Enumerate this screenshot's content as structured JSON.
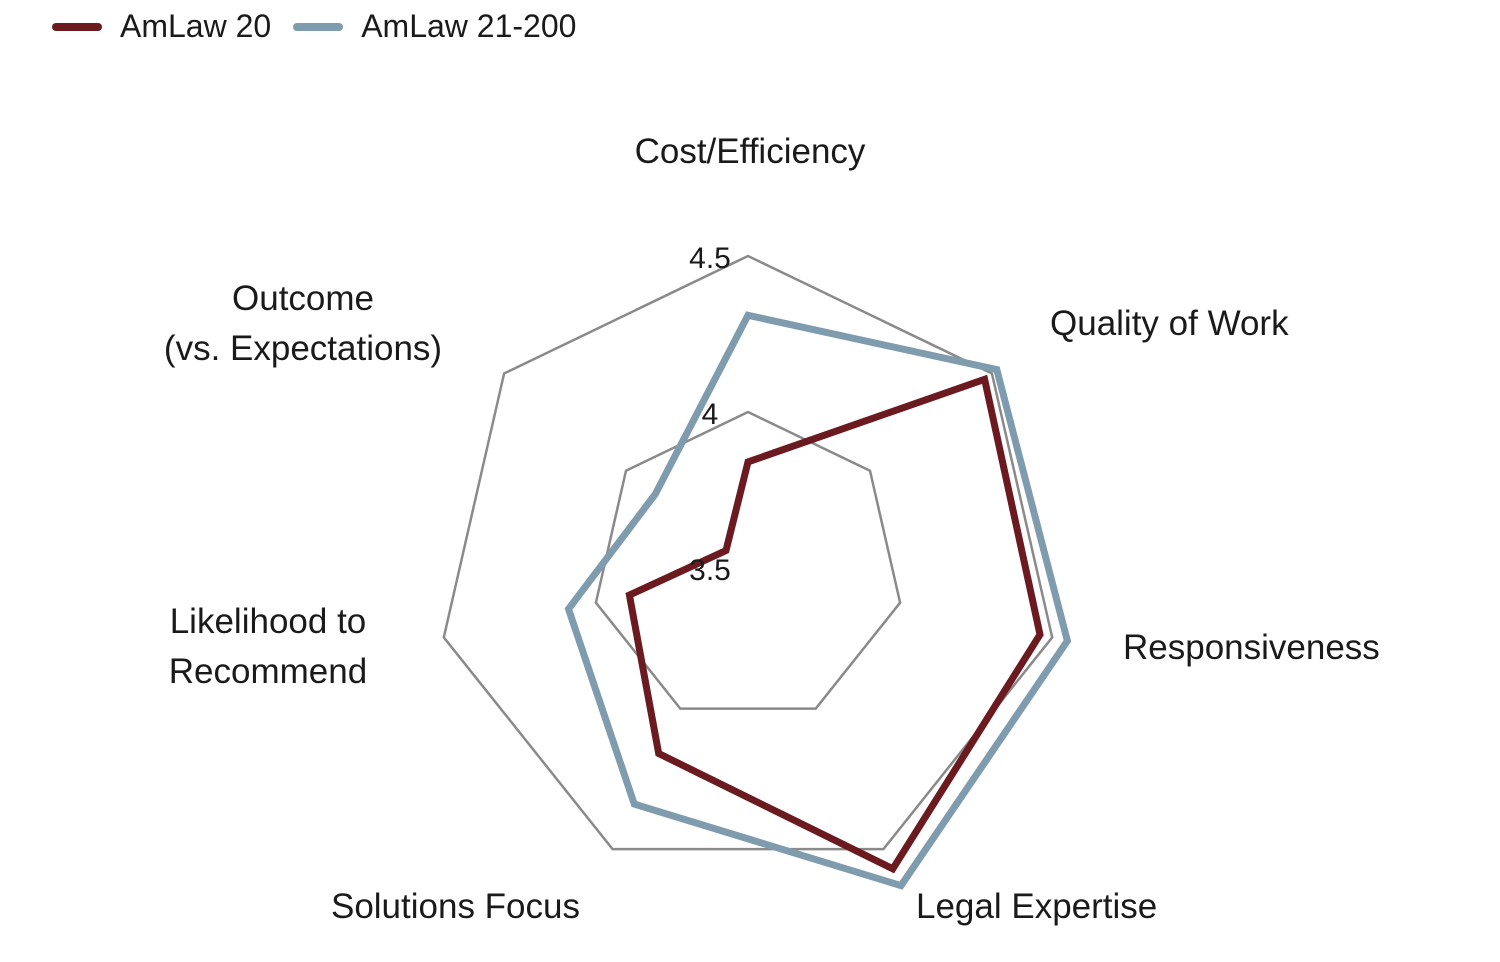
{
  "colors": {
    "grid": "#8a8a8a",
    "text": "#1a1a1a"
  },
  "chart_data": {
    "type": "radar",
    "categories": [
      "Cost/Efficiency",
      "Quality of Work",
      "Responsiveness",
      "Legal Expertise",
      "Solutions Focus",
      "Likelihood to Recommend",
      "Outcome (vs. Expectations)"
    ],
    "category_label_lines": [
      [
        "Cost/Efficiency"
      ],
      [
        "Quality of Work"
      ],
      [
        "Responsiveness"
      ],
      [
        "Legal Expertise"
      ],
      [
        "Solutions Focus"
      ],
      [
        "Likelihood to",
        "Recommend"
      ],
      [
        "Outcome",
        "(vs. Expectations)"
      ]
    ],
    "scale": {
      "min": 3.5,
      "max": 4.5,
      "ticks": [
        "3.5",
        "4",
        "4.5"
      ],
      "tick_values": [
        3.5,
        4.0,
        4.5
      ]
    },
    "series": [
      {
        "name": "AmLaw 20",
        "color": "#6b1a1f",
        "values": [
          3.84,
          4.47,
          4.46,
          4.57,
          4.16,
          3.89,
          3.59
        ]
      },
      {
        "name": "AmLaw 21-200",
        "color": "#7f9cae",
        "values": [
          4.31,
          4.52,
          4.55,
          4.63,
          4.34,
          4.09,
          3.88
        ]
      }
    ],
    "legend": "top-left",
    "grid": true
  }
}
